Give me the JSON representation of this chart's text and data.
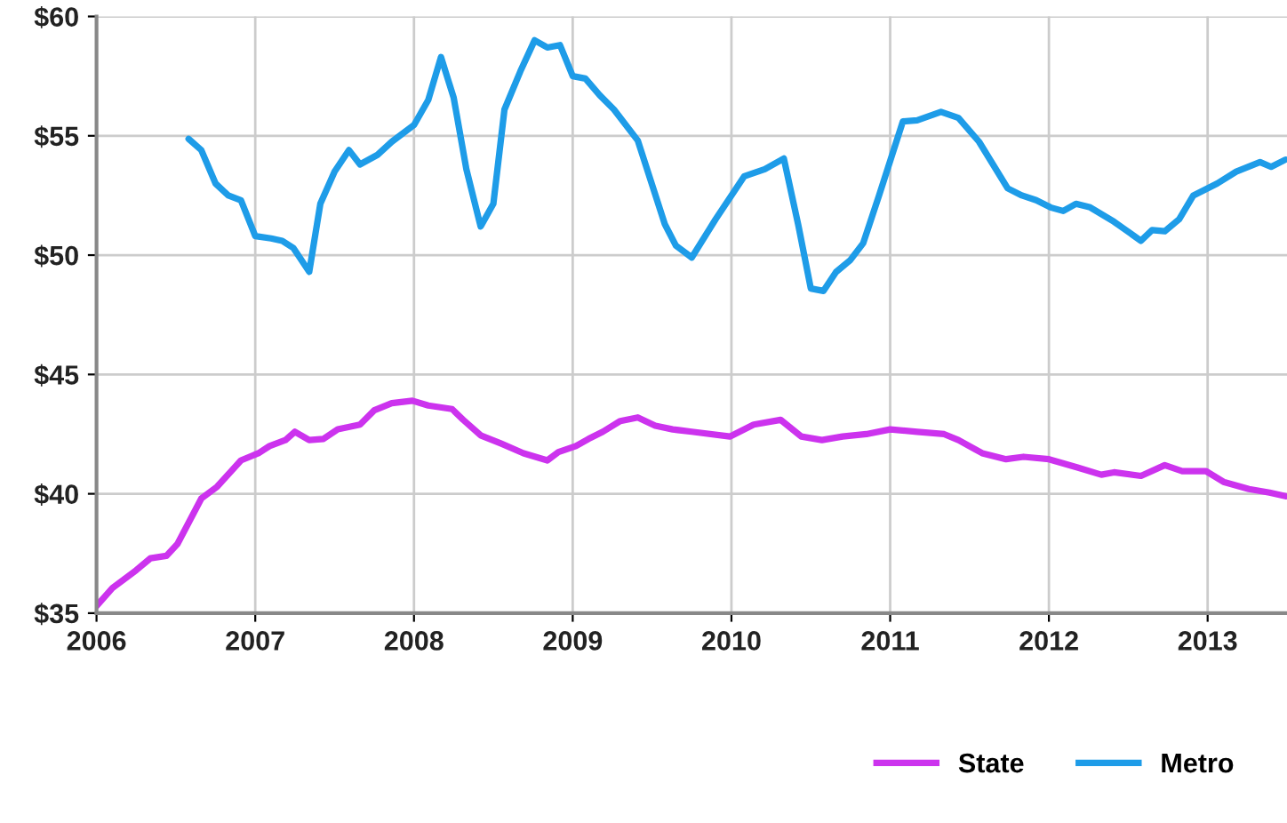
{
  "chart_data": {
    "type": "line",
    "xlim": [
      2006,
      2013.5
    ],
    "ylim": [
      35,
      60
    ],
    "xticks": [
      2006,
      2007,
      2008,
      2009,
      2010,
      2011,
      2012,
      2013
    ],
    "yticks": [
      {
        "value": 35,
        "label": "$35"
      },
      {
        "value": 40,
        "label": "$40"
      },
      {
        "value": 45,
        "label": "$45"
      },
      {
        "value": 50,
        "label": "$50"
      },
      {
        "value": 55,
        "label": "$55"
      },
      {
        "value": 60,
        "label": "$60"
      }
    ],
    "grid": true,
    "legend": "bottom right",
    "line_style": "solid",
    "marker": "none",
    "series": [
      {
        "name": "State",
        "color": "#cc33ee",
        "x": [
          2006.0,
          2006.1,
          2006.25,
          2006.34,
          2006.44,
          2006.51,
          2006.66,
          2006.76,
          2006.91,
          2007.02,
          2007.09,
          2007.19,
          2007.25,
          2007.34,
          2007.43,
          2007.52,
          2007.66,
          2007.75,
          2007.86,
          2007.99,
          2008.09,
          2008.24,
          2008.31,
          2008.42,
          2008.55,
          2008.69,
          2008.84,
          2008.91,
          2009.02,
          2009.1,
          2009.19,
          2009.3,
          2009.41,
          2009.52,
          2009.63,
          2009.75,
          2009.99,
          2010.14,
          2010.31,
          2010.44,
          2010.57,
          2010.7,
          2010.85,
          2011.0,
          2011.17,
          2011.34,
          2011.43,
          2011.58,
          2011.73,
          2011.84,
          2012.0,
          2012.18,
          2012.33,
          2012.41,
          2012.58,
          2012.73,
          2012.84,
          2012.99,
          2013.1,
          2013.26,
          2013.39,
          2013.49
        ],
        "values": [
          35.3,
          36.05,
          36.8,
          37.3,
          37.4,
          37.9,
          39.8,
          40.3,
          41.4,
          41.7,
          42.0,
          42.25,
          42.6,
          42.25,
          42.3,
          42.7,
          42.9,
          43.5,
          43.8,
          43.9,
          43.7,
          43.55,
          43.1,
          42.45,
          42.1,
          41.7,
          41.4,
          41.75,
          42.0,
          42.3,
          42.6,
          43.05,
          43.2,
          42.85,
          42.7,
          42.6,
          42.4,
          42.9,
          43.1,
          42.4,
          42.25,
          42.4,
          42.5,
          42.7,
          42.6,
          42.5,
          42.25,
          41.7,
          41.45,
          41.55,
          41.45,
          41.1,
          40.8,
          40.9,
          40.75,
          41.2,
          40.95,
          40.95,
          40.5,
          40.2,
          40.05,
          39.9
        ]
      },
      {
        "name": "Metro",
        "color": "#1e9ce8",
        "x": [
          2006.58,
          2006.66,
          2006.75,
          2006.83,
          2006.91,
          2007.0,
          2007.1,
          2007.17,
          2007.24,
          2007.34,
          2007.41,
          2007.5,
          2007.59,
          2007.66,
          2007.77,
          2007.86,
          2008.0,
          2008.09,
          2008.17,
          2008.25,
          2008.33,
          2008.42,
          2008.5,
          2008.57,
          2008.67,
          2008.76,
          2008.84,
          2008.92,
          2009.0,
          2009.08,
          2009.17,
          2009.26,
          2009.41,
          2009.58,
          2009.65,
          2009.75,
          2009.9,
          2010.08,
          2010.21,
          2010.33,
          2010.42,
          2010.5,
          2010.58,
          2010.66,
          2010.75,
          2010.83,
          2010.93,
          2011.08,
          2011.17,
          2011.32,
          2011.43,
          2011.56,
          2011.74,
          2011.83,
          2011.92,
          2012.01,
          2012.09,
          2012.17,
          2012.26,
          2012.41,
          2012.58,
          2012.65,
          2012.73,
          2012.82,
          2012.91,
          2013.06,
          2013.18,
          2013.33,
          2013.4,
          2013.49
        ],
        "values": [
          54.87,
          54.4,
          53.0,
          52.5,
          52.3,
          50.8,
          50.7,
          50.6,
          50.3,
          49.3,
          52.15,
          53.5,
          54.4,
          53.8,
          54.2,
          54.75,
          55.45,
          56.5,
          58.3,
          56.6,
          53.6,
          51.2,
          52.15,
          56.1,
          57.7,
          59.0,
          58.7,
          58.8,
          57.5,
          57.4,
          56.7,
          56.1,
          54.8,
          51.3,
          50.4,
          49.9,
          51.5,
          53.3,
          53.6,
          54.05,
          51.3,
          48.6,
          48.5,
          49.3,
          49.8,
          50.5,
          52.5,
          55.6,
          55.65,
          56.0,
          55.75,
          54.75,
          52.8,
          52.5,
          52.3,
          52.0,
          51.85,
          52.15,
          52.0,
          51.4,
          50.6,
          51.05,
          51.0,
          51.5,
          52.5,
          53.0,
          53.5,
          53.9,
          53.7,
          54.0
        ]
      }
    ]
  }
}
